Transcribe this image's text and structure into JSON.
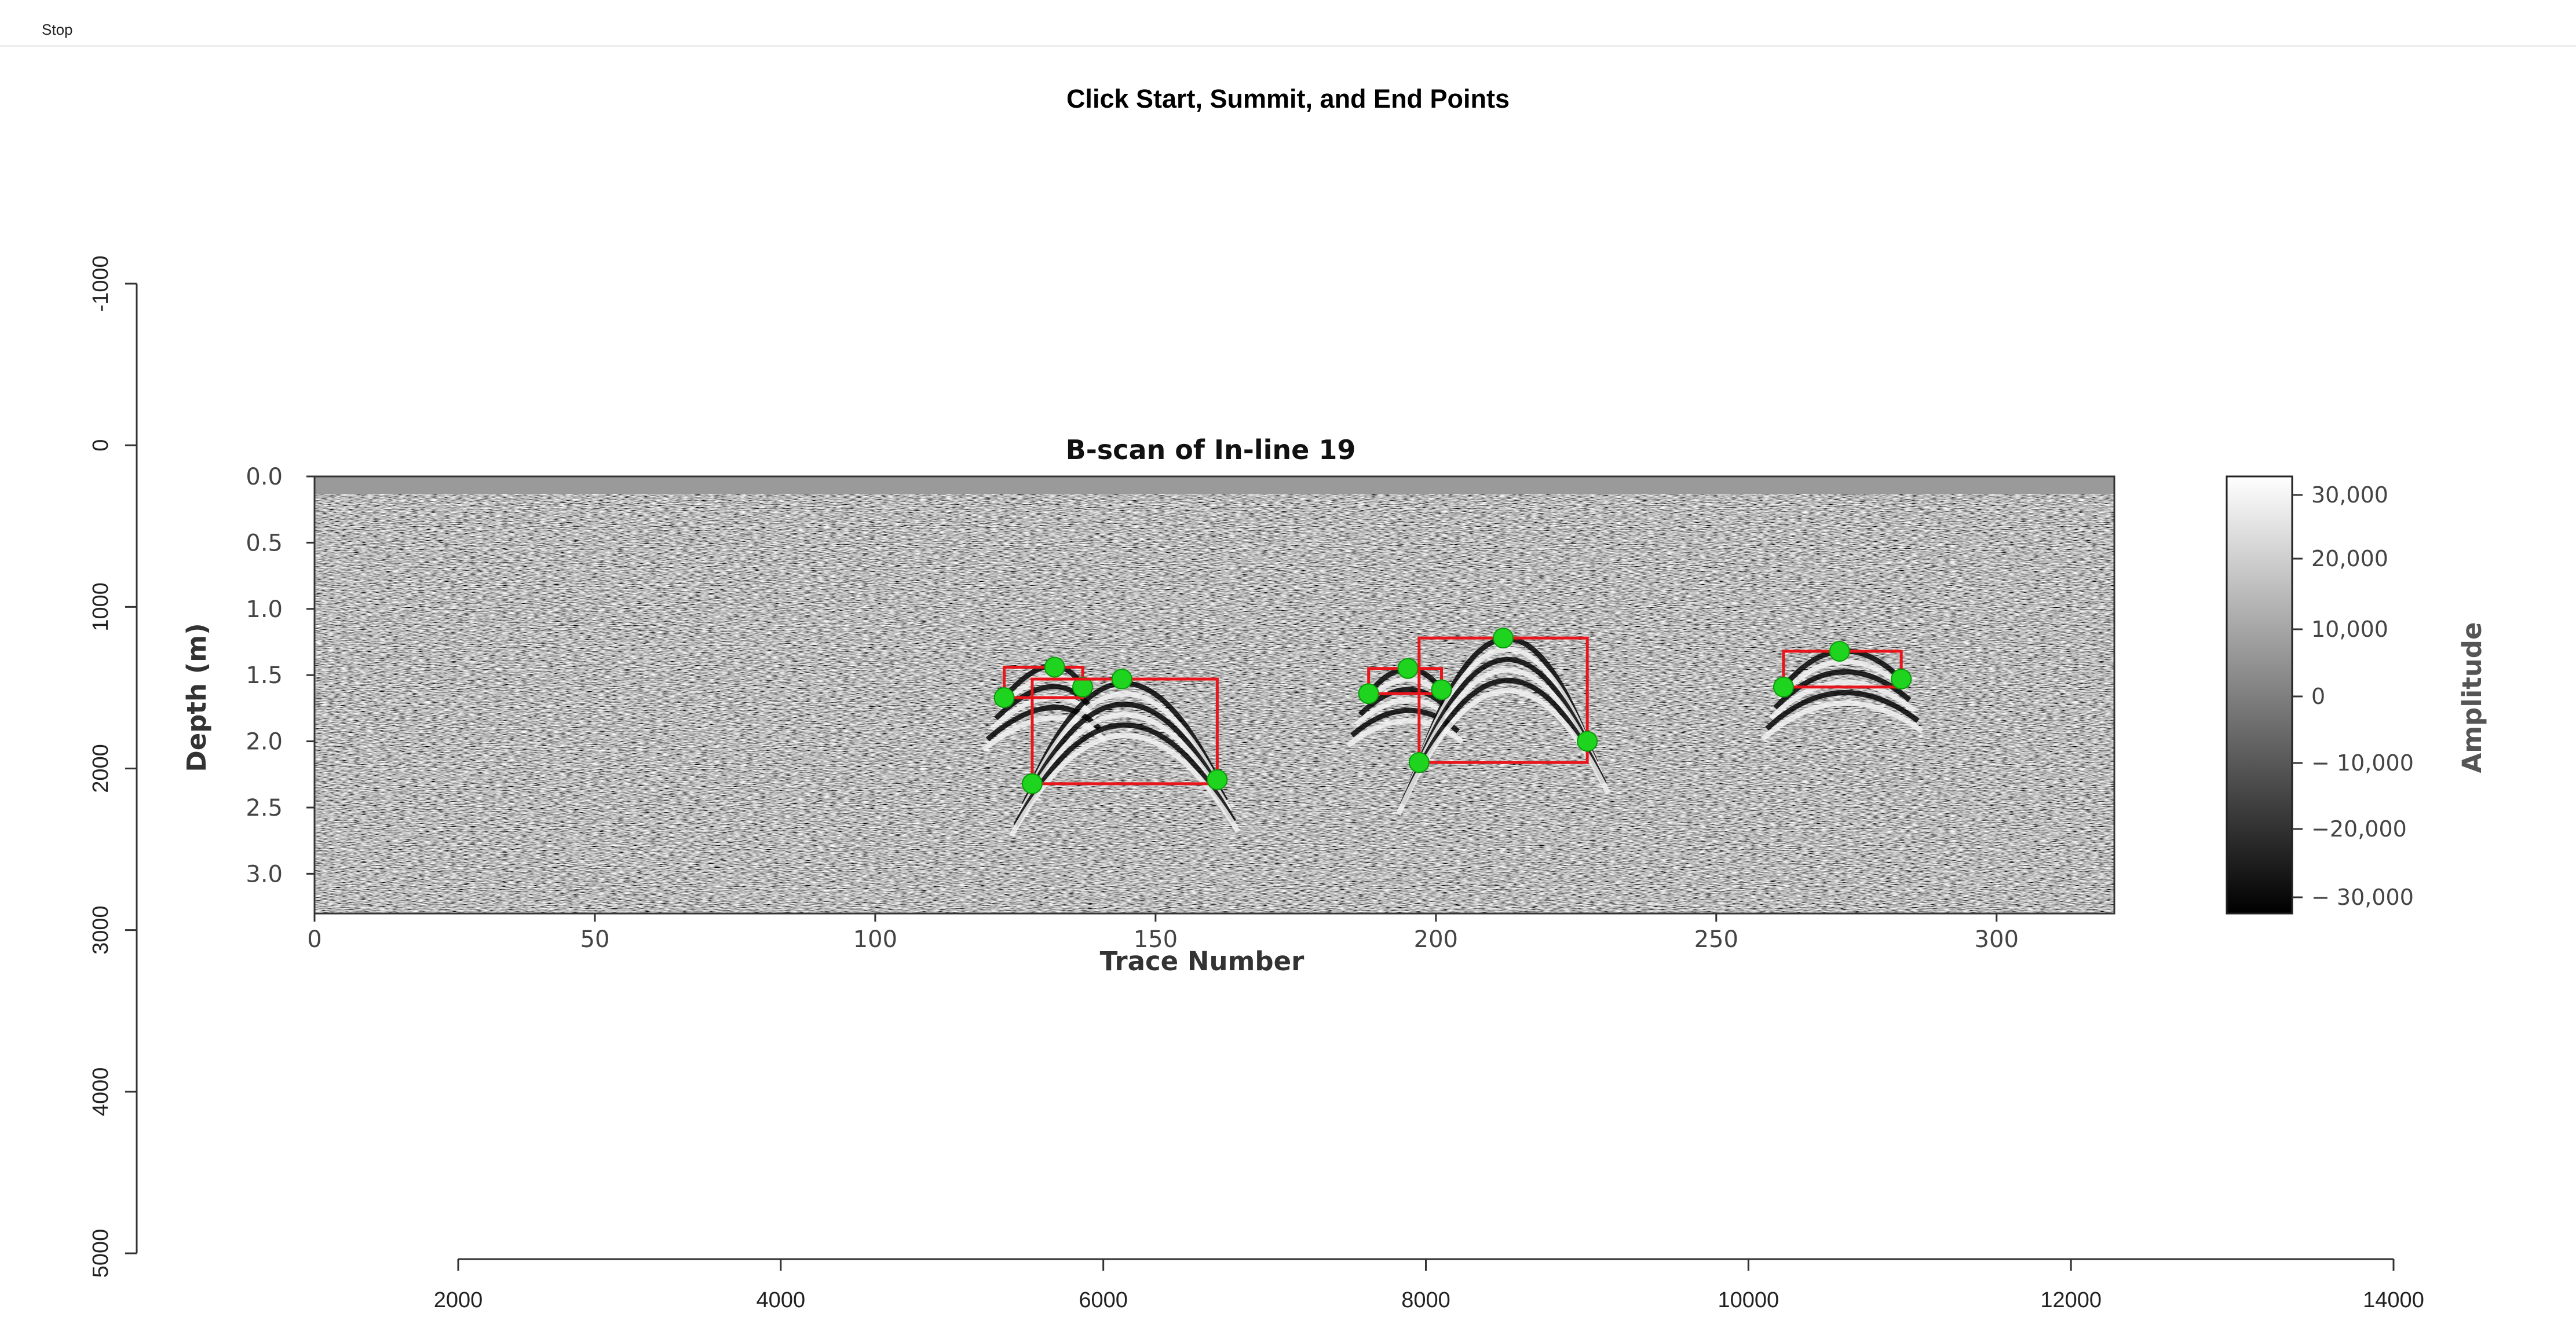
{
  "toolbar": {
    "stop_label": "Stop"
  },
  "page_title": "Click Start, Summit, and End Points",
  "outer_axes": {
    "x_ticks": [
      "2000",
      "4000",
      "6000",
      "8000",
      "10000",
      "12000",
      "14000"
    ],
    "y_ticks": [
      "-1000",
      "0",
      "1000",
      "2000",
      "3000",
      "4000",
      "5000"
    ]
  },
  "chart_data": {
    "type": "heatmap",
    "title": "B-scan of In-line 19",
    "xlabel": "Trace Number",
    "ylabel": "Depth (m)",
    "xlim": [
      0,
      321
    ],
    "ylim": [
      0.0,
      3.3
    ],
    "x_ticks": [
      "0",
      "50",
      "100",
      "150",
      "200",
      "250",
      "300"
    ],
    "y_ticks": [
      "0.0",
      "0.5",
      "1.0",
      "1.5",
      "2.0",
      "2.5",
      "3.0"
    ],
    "colorbar": {
      "title": "Amplitude",
      "ticks": [
        "30,000",
        "20,000",
        "10,000",
        "0",
        "− 10,000",
        "−20,000",
        "− 30,000"
      ],
      "colormap": "gray"
    },
    "picked_hyperbolas": [
      {
        "start": [
          123,
          1.67
        ],
        "summit": [
          132,
          1.44
        ],
        "end": [
          137,
          1.59
        ]
      },
      {
        "start": [
          128,
          2.32
        ],
        "summit": [
          144,
          1.53
        ],
        "end": [
          161,
          2.29
        ]
      },
      {
        "start": [
          188,
          1.64
        ],
        "summit": [
          195,
          1.45
        ],
        "end": [
          201,
          1.61
        ]
      },
      {
        "start": [
          197,
          2.16
        ],
        "summit": [
          212,
          1.22
        ],
        "end": [
          227,
          2.0
        ]
      },
      {
        "start": [
          262,
          1.59
        ],
        "summit": [
          272,
          1.32
        ],
        "end": [
          283,
          1.53
        ]
      }
    ]
  },
  "colors": {
    "box": "#e8161c",
    "point": "#1ed41e"
  }
}
